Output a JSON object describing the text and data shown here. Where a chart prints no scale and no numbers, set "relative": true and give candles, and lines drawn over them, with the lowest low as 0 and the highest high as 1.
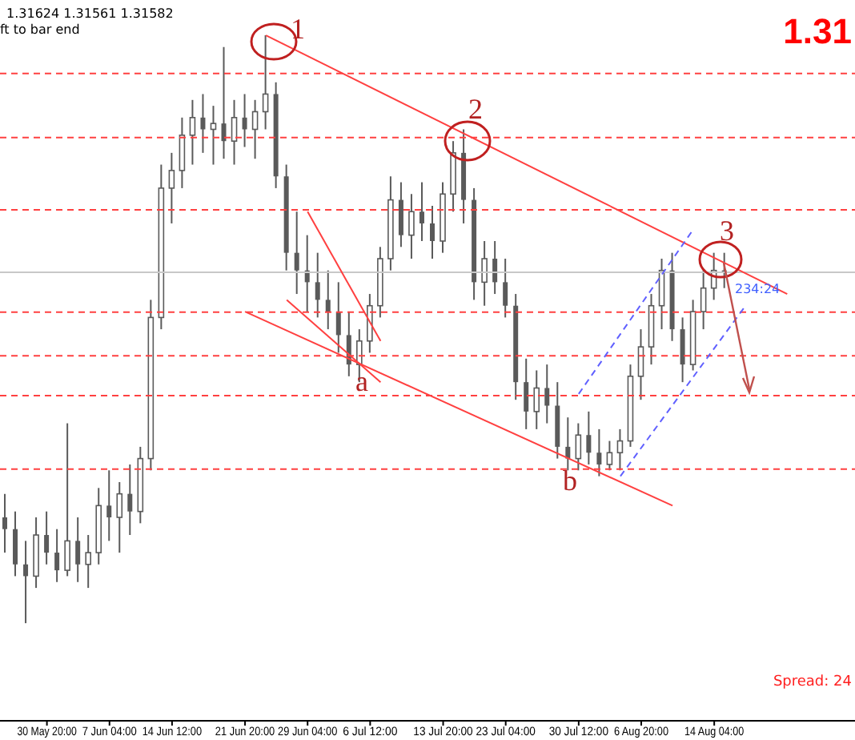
{
  "chart_data": {
    "type": "candlestick",
    "relative": true,
    "tick_labels": "x",
    "color": "#5a5a5a",
    "categories": [
      null,
      null,
      null,
      null,
      "30 May 20:00",
      null,
      null,
      null,
      null,
      null,
      "7 Jun 04:00",
      null,
      null,
      null,
      null,
      null,
      "14 Jun 12:00",
      null,
      null,
      null,
      null,
      null,
      null,
      "21 Jun 20:00",
      null,
      null,
      null,
      null,
      null,
      "29 Jun 04:00",
      null,
      null,
      null,
      null,
      null,
      "6 Jul 12:00",
      null,
      null,
      null,
      null,
      null,
      null,
      "13 Jul 20:00",
      null,
      null,
      null,
      null,
      null,
      "23 Jul 04:00",
      null,
      null,
      null,
      null,
      null,
      null,
      "30 Jul 12:00",
      null,
      null,
      null,
      null,
      null,
      "6 Aug 20:00",
      null,
      null,
      null,
      null,
      null,
      null,
      "14 Aug 04:00",
      null,
      null,
      null,
      null,
      null,
      null,
      null,
      null,
      null,
      null,
      null,
      null,
      null
    ],
    "ohlc": [
      [
        0.18,
        0.22,
        0.12,
        0.16
      ],
      [
        0.16,
        0.19,
        0.08,
        0.1
      ],
      [
        0.1,
        0.14,
        0.0,
        0.08
      ],
      [
        0.08,
        0.18,
        0.06,
        0.15
      ],
      [
        0.15,
        0.19,
        0.1,
        0.12
      ],
      [
        0.12,
        0.16,
        0.07,
        0.09
      ],
      [
        0.09,
        0.34,
        0.08,
        0.14
      ],
      [
        0.14,
        0.18,
        0.07,
        0.1
      ],
      [
        0.1,
        0.15,
        0.06,
        0.12
      ],
      [
        0.12,
        0.23,
        0.1,
        0.2
      ],
      [
        0.2,
        0.26,
        0.14,
        0.18
      ],
      [
        0.18,
        0.24,
        0.12,
        0.22
      ],
      [
        0.22,
        0.27,
        0.15,
        0.19
      ],
      [
        0.19,
        0.3,
        0.17,
        0.28
      ],
      [
        0.28,
        0.55,
        0.26,
        0.52
      ],
      [
        0.52,
        0.78,
        0.5,
        0.74
      ],
      [
        0.74,
        0.8,
        0.68,
        0.77
      ],
      [
        0.77,
        0.86,
        0.74,
        0.83
      ],
      [
        0.83,
        0.89,
        0.78,
        0.86
      ],
      [
        0.86,
        0.9,
        0.8,
        0.84
      ],
      [
        0.84,
        0.88,
        0.78,
        0.85
      ],
      [
        0.85,
        0.98,
        0.79,
        0.82
      ],
      [
        0.82,
        0.89,
        0.78,
        0.86
      ],
      [
        0.86,
        0.9,
        0.81,
        0.84
      ],
      [
        0.84,
        0.89,
        0.79,
        0.87
      ],
      [
        0.87,
        1.0,
        0.84,
        0.9
      ],
      [
        0.9,
        0.92,
        0.74,
        0.76
      ],
      [
        0.76,
        0.78,
        0.6,
        0.63
      ],
      [
        0.63,
        0.7,
        0.56,
        0.6
      ],
      [
        0.6,
        0.66,
        0.53,
        0.58
      ],
      [
        0.58,
        0.63,
        0.52,
        0.55
      ],
      [
        0.55,
        0.6,
        0.5,
        0.53
      ],
      [
        0.53,
        0.58,
        0.46,
        0.49
      ],
      [
        0.49,
        0.53,
        0.42,
        0.44
      ],
      [
        0.44,
        0.5,
        0.41,
        0.48
      ],
      [
        0.48,
        0.56,
        0.46,
        0.54
      ],
      [
        0.54,
        0.64,
        0.52,
        0.62
      ],
      [
        0.62,
        0.76,
        0.6,
        0.72
      ],
      [
        0.72,
        0.75,
        0.64,
        0.66
      ],
      [
        0.66,
        0.73,
        0.62,
        0.7
      ],
      [
        0.7,
        0.75,
        0.65,
        0.68
      ],
      [
        0.68,
        0.71,
        0.62,
        0.65
      ],
      [
        0.65,
        0.75,
        0.63,
        0.73
      ],
      [
        0.73,
        0.82,
        0.7,
        0.8
      ],
      [
        0.8,
        0.84,
        0.68,
        0.72
      ],
      [
        0.72,
        0.74,
        0.55,
        0.58
      ],
      [
        0.58,
        0.65,
        0.54,
        0.62
      ],
      [
        0.62,
        0.65,
        0.56,
        0.58
      ],
      [
        0.58,
        0.62,
        0.52,
        0.54
      ],
      [
        0.54,
        0.56,
        0.38,
        0.41
      ],
      [
        0.41,
        0.45,
        0.33,
        0.36
      ],
      [
        0.36,
        0.43,
        0.33,
        0.4
      ],
      [
        0.4,
        0.44,
        0.34,
        0.37
      ],
      [
        0.37,
        0.41,
        0.28,
        0.3
      ],
      [
        0.3,
        0.35,
        0.26,
        0.28
      ],
      [
        0.28,
        0.34,
        0.26,
        0.32
      ],
      [
        0.32,
        0.36,
        0.27,
        0.29
      ],
      [
        0.29,
        0.33,
        0.25,
        0.27
      ],
      [
        0.27,
        0.31,
        0.26,
        0.29
      ],
      [
        0.29,
        0.33,
        0.26,
        0.31
      ],
      [
        0.31,
        0.44,
        0.3,
        0.42
      ],
      [
        0.42,
        0.5,
        0.38,
        0.47
      ],
      [
        0.47,
        0.56,
        0.44,
        0.54
      ],
      [
        0.54,
        0.62,
        0.5,
        0.6
      ],
      [
        0.6,
        0.63,
        0.48,
        0.5
      ],
      [
        0.5,
        0.52,
        0.41,
        0.44
      ],
      [
        0.44,
        0.55,
        0.43,
        0.53
      ],
      [
        0.53,
        0.6,
        0.5,
        0.57
      ],
      [
        0.57,
        0.63,
        0.55,
        0.6
      ],
      [
        0.6,
        0.63,
        0.57,
        0.6
      ],
      null,
      null,
      null,
      null,
      null,
      null,
      null,
      null,
      null,
      null,
      null,
      null
    ],
    "series": [
      {
        "type": "line",
        "color": "#ff4040",
        "line_style": "solid",
        "values": [
          null,
          null,
          null,
          null,
          null,
          null,
          null,
          null,
          null,
          null,
          null,
          null,
          null,
          null,
          null,
          null,
          null,
          null,
          null,
          null,
          null,
          null,
          null,
          null,
          null,
          1.0,
          null,
          null,
          null,
          null,
          null,
          null,
          null,
          null,
          null,
          null,
          null,
          null,
          null,
          null,
          null,
          null,
          null,
          null,
          null,
          null,
          null,
          null,
          null,
          null,
          null,
          null,
          null,
          null,
          null,
          null,
          null,
          null,
          null,
          null,
          null,
          null,
          null,
          null,
          null,
          null,
          null,
          null,
          null,
          null,
          null,
          null,
          null,
          null,
          null,
          0.56,
          null,
          null,
          null,
          null,
          null,
          null
        ]
      },
      {
        "type": "line",
        "color": "#ff4040",
        "line_style": "solid",
        "values": [
          null,
          null,
          null,
          null,
          null,
          null,
          null,
          null,
          null,
          null,
          null,
          null,
          null,
          null,
          null,
          null,
          null,
          null,
          null,
          null,
          null,
          null,
          null,
          0.53,
          null,
          null,
          null,
          null,
          null,
          null,
          null,
          null,
          null,
          null,
          null,
          null,
          null,
          null,
          null,
          null,
          null,
          null,
          null,
          null,
          null,
          null,
          null,
          null,
          null,
          null,
          null,
          null,
          null,
          null,
          null,
          null,
          null,
          null,
          null,
          null,
          null,
          null,
          null,
          null,
          0.2,
          null,
          null,
          null,
          null,
          null,
          null,
          null,
          null,
          null,
          null,
          null,
          null,
          null,
          null,
          null,
          null,
          null
        ]
      },
      {
        "type": "line",
        "color": "#ff4040",
        "line_style": "solid",
        "values": [
          null,
          null,
          null,
          null,
          null,
          null,
          null,
          null,
          null,
          null,
          null,
          null,
          null,
          null,
          null,
          null,
          null,
          null,
          null,
          null,
          null,
          null,
          null,
          null,
          null,
          null,
          null,
          0.55,
          null,
          null,
          null,
          null,
          null,
          null,
          null,
          null,
          0.41,
          null,
          null,
          null,
          null,
          null,
          null,
          null,
          null,
          null,
          null,
          null,
          null,
          null,
          null,
          null,
          null,
          null,
          null,
          null,
          null,
          null,
          null,
          null,
          null,
          null,
          null,
          null,
          null,
          null,
          null,
          null,
          null,
          null,
          null,
          null,
          null,
          null,
          null,
          null,
          null,
          null,
          null,
          null,
          null,
          null
        ]
      },
      {
        "type": "line",
        "color": "#ff4040",
        "line_style": "solid",
        "values": [
          null,
          null,
          null,
          null,
          null,
          null,
          null,
          null,
          null,
          null,
          null,
          null,
          null,
          null,
          null,
          null,
          null,
          null,
          null,
          null,
          null,
          null,
          null,
          null,
          null,
          null,
          null,
          null,
          null,
          0.7,
          null,
          null,
          null,
          null,
          null,
          null,
          0.48,
          null,
          null,
          null,
          null,
          null,
          null,
          null,
          null,
          null,
          null,
          null,
          null,
          null,
          null,
          null,
          null,
          null,
          null,
          null,
          null,
          null,
          null,
          null,
          null,
          null,
          null,
          null,
          null,
          null,
          null,
          null,
          null,
          null,
          null,
          null,
          null,
          null,
          null,
          null,
          null,
          null,
          null,
          null,
          null,
          null
        ]
      },
      {
        "type": "line",
        "color": "#6060ff",
        "line_style": "dashed",
        "values": [
          null,
          null,
          null,
          null,
          null,
          null,
          null,
          null,
          null,
          null,
          null,
          null,
          null,
          null,
          null,
          null,
          null,
          null,
          null,
          null,
          null,
          null,
          null,
          null,
          null,
          null,
          null,
          null,
          null,
          null,
          null,
          null,
          null,
          null,
          null,
          null,
          null,
          null,
          null,
          null,
          null,
          null,
          null,
          null,
          null,
          null,
          null,
          null,
          null,
          null,
          null,
          null,
          null,
          null,
          null,
          0.39,
          null,
          null,
          null,
          null,
          null,
          null,
          null,
          null,
          null,
          null,
          0.67,
          null,
          null,
          null,
          null,
          null,
          null,
          null,
          null,
          null,
          null,
          null,
          null,
          null,
          null,
          null
        ]
      },
      {
        "type": "line",
        "color": "#6060ff",
        "line_style": "dashed",
        "values": [
          null,
          null,
          null,
          null,
          null,
          null,
          null,
          null,
          null,
          null,
          null,
          null,
          null,
          null,
          null,
          null,
          null,
          null,
          null,
          null,
          null,
          null,
          null,
          null,
          null,
          null,
          null,
          null,
          null,
          null,
          null,
          null,
          null,
          null,
          null,
          null,
          null,
          null,
          null,
          null,
          null,
          null,
          null,
          null,
          null,
          null,
          null,
          null,
          null,
          null,
          null,
          null,
          null,
          null,
          null,
          null,
          null,
          null,
          null,
          0.25,
          null,
          null,
          null,
          null,
          null,
          null,
          null,
          null,
          null,
          null,
          null,
          0.54,
          null,
          null,
          null,
          null,
          null,
          null,
          null,
          null,
          null,
          null
        ]
      }
    ],
    "ref_lines": [
      {
        "axis": "y",
        "value": 0.935,
        "color": "#ff4040",
        "line_style": "dashed"
      },
      {
        "axis": "y",
        "value": 0.826,
        "color": "#ff4040",
        "line_style": "dashed"
      },
      {
        "axis": "y",
        "value": 0.703,
        "color": "#ff4040",
        "line_style": "dashed"
      },
      {
        "axis": "y",
        "value": 0.597,
        "color": "#c8c8c8",
        "line_style": "solid"
      },
      {
        "axis": "y",
        "value": 0.529,
        "color": "#ff4040",
        "line_style": "dashed"
      },
      {
        "axis": "y",
        "value": 0.455,
        "color": "#ff4040",
        "line_style": "dashed"
      },
      {
        "axis": "y",
        "value": 0.387,
        "color": "#ff4040",
        "line_style": "dashed"
      },
      {
        "axis": "y",
        "value": 0.262,
        "color": "#ff4040",
        "line_style": "dashed"
      }
    ],
    "annotations": [
      "1.31624 1.31561 1.31582",
      "ft to bar end",
      "1.31",
      "1",
      "2",
      "3",
      "a",
      "b",
      "234:24",
      "Spread: 24"
    ]
  }
}
